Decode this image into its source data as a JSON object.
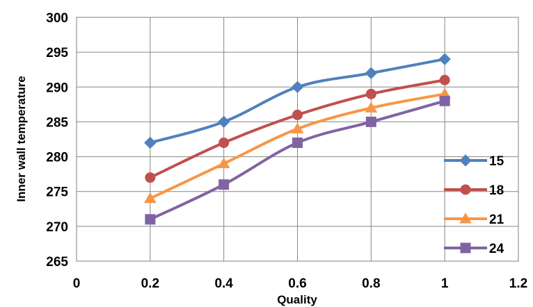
{
  "chart_data": {
    "type": "line",
    "xlabel": "Quality",
    "ylabel": "Inner  wall temperature",
    "xlim": [
      0,
      1.2
    ],
    "ylim": [
      265,
      300
    ],
    "x_ticks": [
      "0",
      "0.2",
      "0.4",
      "0.6",
      "0.8",
      "1",
      "1.2"
    ],
    "y_ticks": [
      "265",
      "270",
      "275",
      "280",
      "285",
      "290",
      "295",
      "300"
    ],
    "x": [
      0.2,
      0.4,
      0.6,
      0.8,
      1.0
    ],
    "grid": true,
    "smooth_lines": true,
    "legend_position": "right",
    "series": [
      {
        "name": "15",
        "values": [
          282,
          285,
          290,
          292,
          294
        ],
        "color": "#4F81BD",
        "marker": "diamond"
      },
      {
        "name": "18",
        "values": [
          277,
          282,
          286,
          289,
          291
        ],
        "color": "#C0504D",
        "marker": "circle"
      },
      {
        "name": "21",
        "values": [
          274,
          279,
          284,
          287,
          289
        ],
        "color": "#F79646",
        "marker": "triangle"
      },
      {
        "name": "24",
        "values": [
          271,
          276,
          282,
          285,
          288
        ],
        "color": "#8064A2",
        "marker": "square"
      }
    ]
  }
}
